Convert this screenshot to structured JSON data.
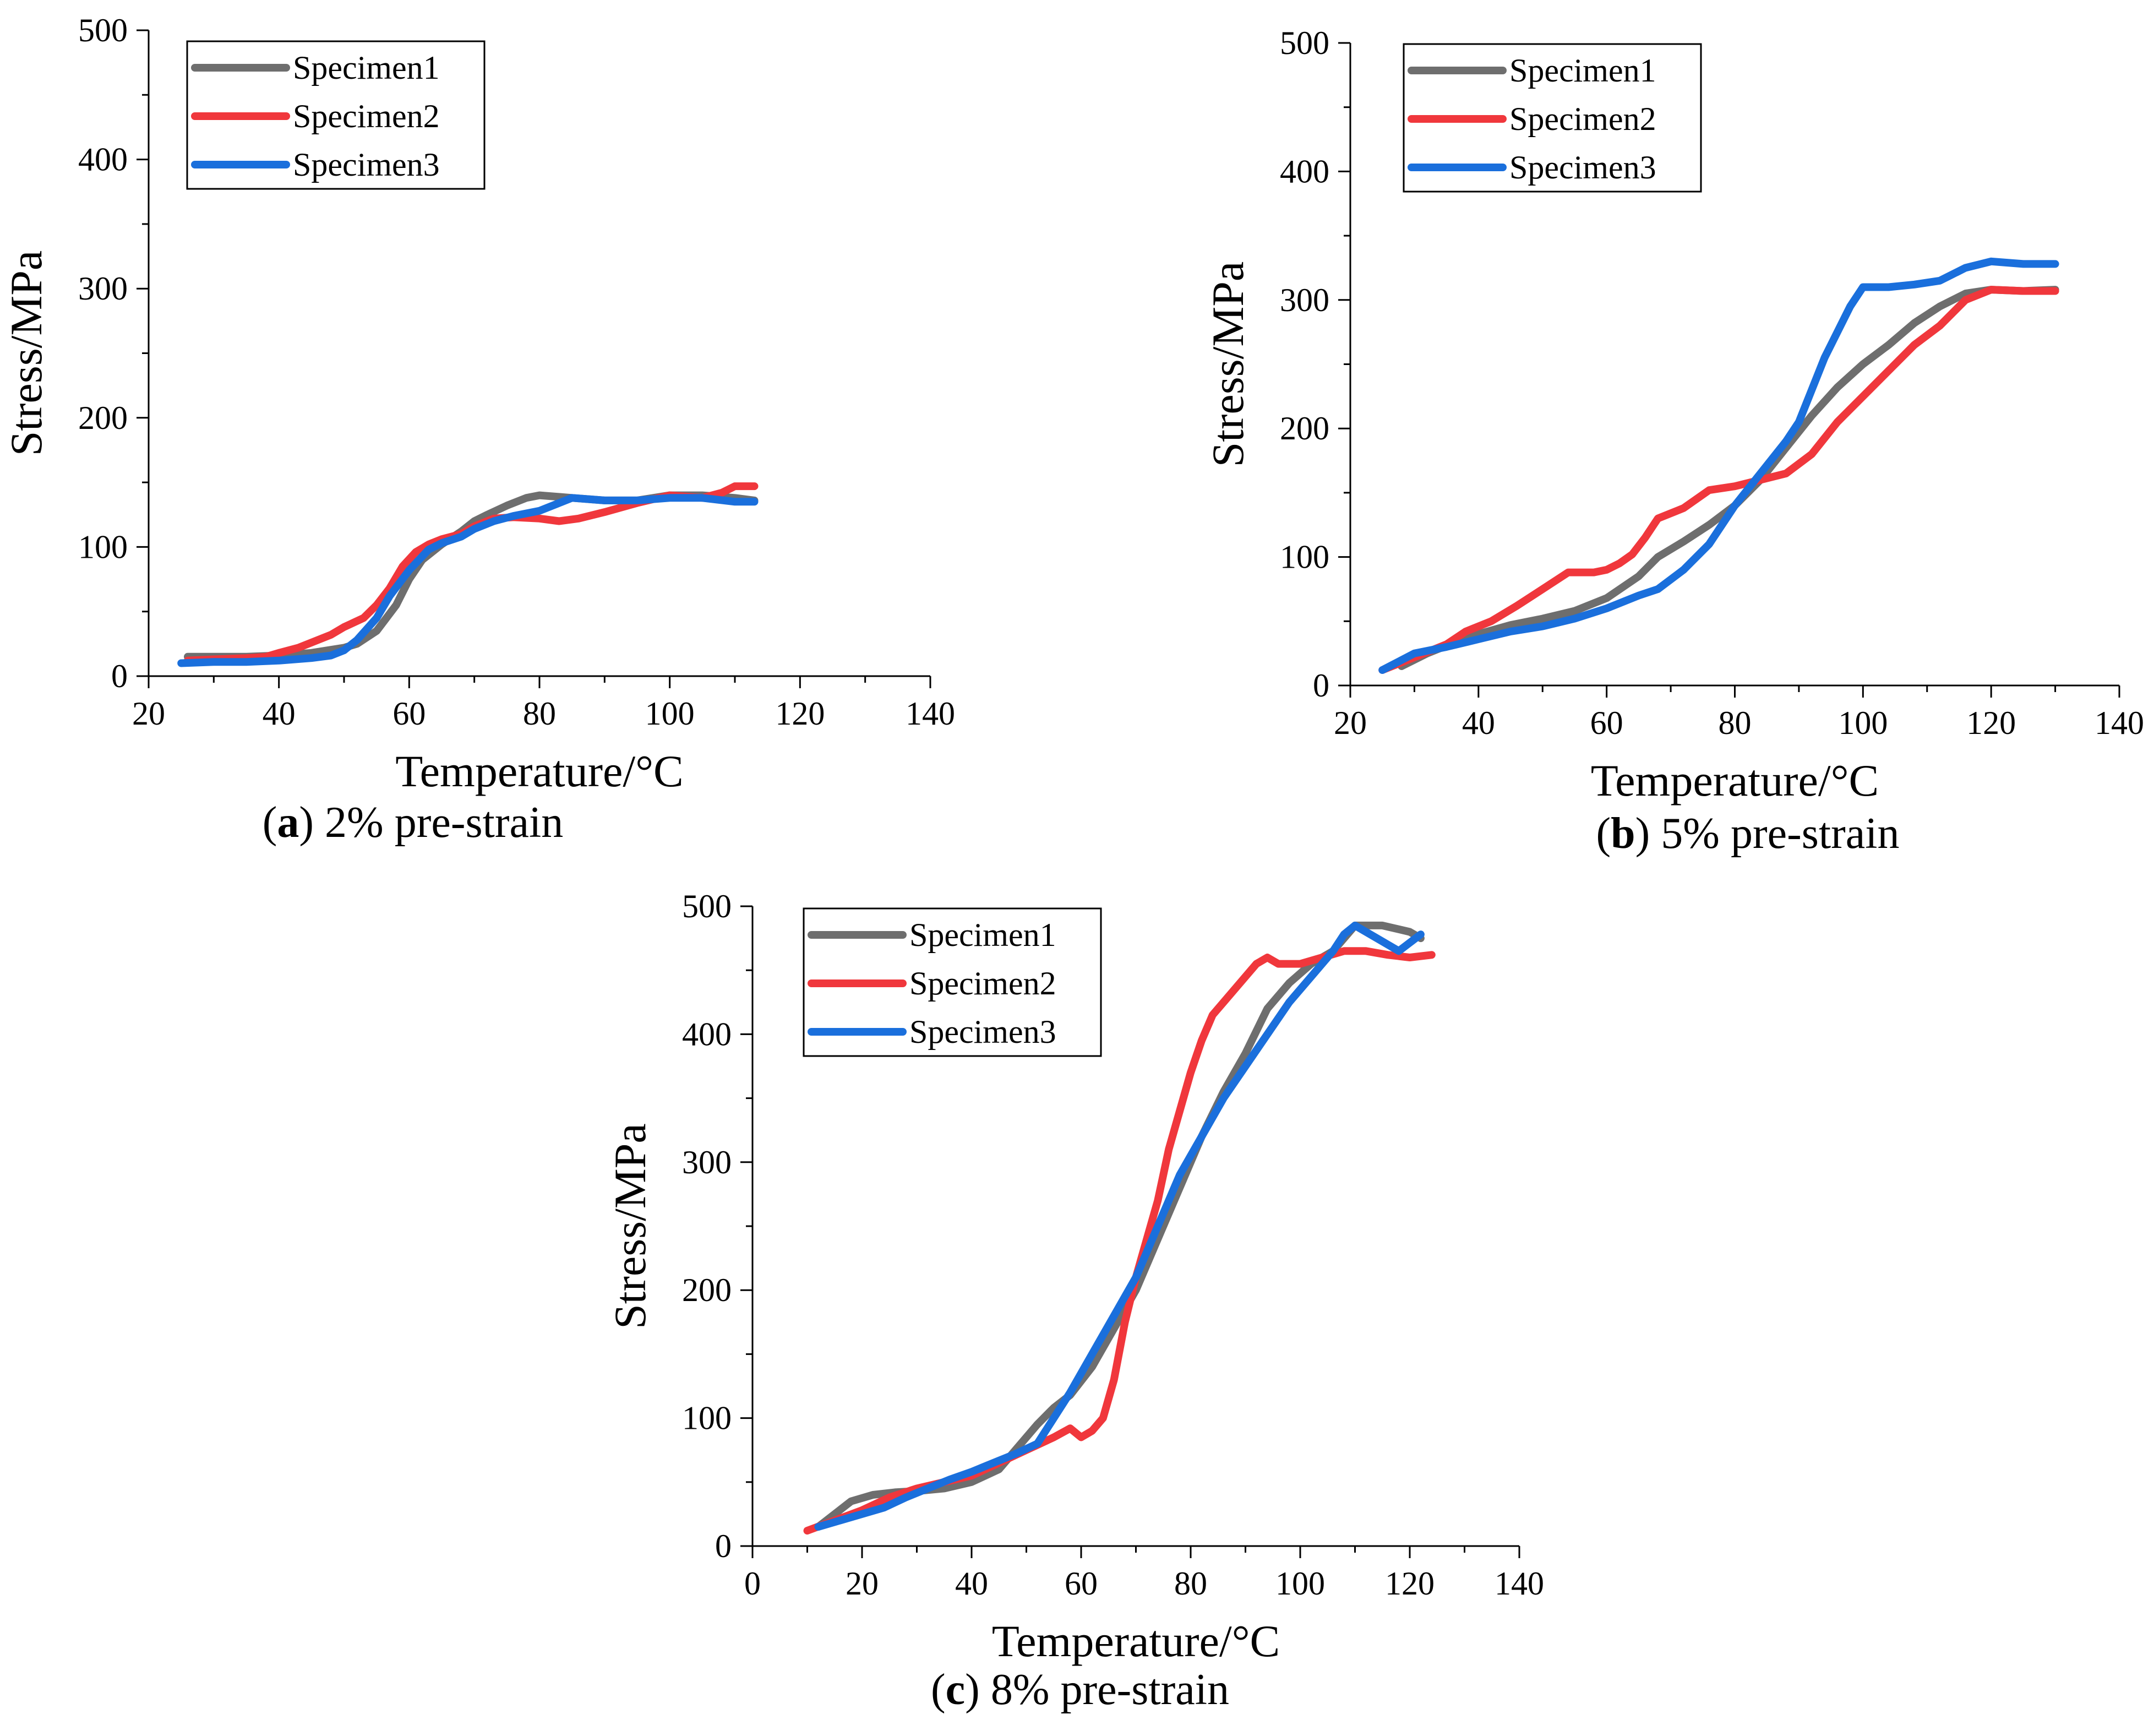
{
  "colors": {
    "Specimen1": "#6e6e6e",
    "Specimen2": "#f0373c",
    "Specimen3": "#1a6fdc"
  },
  "chart_data": [
    {
      "type": "line",
      "caption_letter": "a",
      "caption_rest": ") 2% pre-strain",
      "caption_open": "(",
      "xlabel": "Temperature/°C",
      "ylabel": "Stress/MPa",
      "xlim": [
        20,
        140
      ],
      "ylim": [
        0,
        500
      ],
      "xticks": [
        20,
        40,
        60,
        80,
        100,
        120,
        140
      ],
      "yticks": [
        0,
        100,
        200,
        300,
        400,
        500
      ],
      "legend_position": "top-left",
      "series": [
        {
          "name": "Specimen1",
          "x": [
            26,
            30,
            35,
            40,
            45,
            50,
            52,
            55,
            58,
            60,
            62,
            65,
            68,
            70,
            72,
            75,
            78,
            80,
            85,
            90,
            95,
            100,
            105,
            110,
            113
          ],
          "y": [
            15,
            15,
            15,
            16,
            18,
            22,
            25,
            35,
            55,
            75,
            90,
            102,
            112,
            120,
            125,
            132,
            138,
            140,
            138,
            136,
            136,
            140,
            140,
            138,
            136
          ]
        },
        {
          "name": "Specimen2",
          "x": [
            26,
            30,
            35,
            38,
            40,
            43,
            45,
            48,
            50,
            53,
            55,
            57,
            59,
            61,
            63,
            65,
            68,
            70,
            73,
            76,
            80,
            83,
            86,
            90,
            95,
            100,
            105,
            108,
            110,
            113
          ],
          "y": [
            12,
            13,
            14,
            15,
            18,
            22,
            26,
            32,
            38,
            45,
            55,
            68,
            85,
            96,
            102,
            106,
            110,
            116,
            122,
            123,
            122,
            120,
            122,
            127,
            134,
            140,
            138,
            142,
            147,
            147
          ]
        },
        {
          "name": "Specimen3",
          "x": [
            25,
            30,
            35,
            40,
            45,
            48,
            50,
            52,
            55,
            57,
            60,
            63,
            65,
            68,
            70,
            73,
            76,
            80,
            85,
            90,
            95,
            100,
            105,
            110,
            113
          ],
          "y": [
            10,
            11,
            11,
            12,
            14,
            16,
            20,
            28,
            45,
            62,
            82,
            98,
            103,
            108,
            114,
            120,
            124,
            128,
            138,
            136,
            136,
            138,
            138,
            135,
            135
          ]
        }
      ]
    },
    {
      "type": "line",
      "caption_letter": "b",
      "caption_rest": ") 5% pre-strain",
      "caption_open": "(",
      "xlabel": "Temperature/°C",
      "ylabel": "Stress/MPa",
      "xlim": [
        20,
        140
      ],
      "ylim": [
        0,
        500
      ],
      "xticks": [
        20,
        40,
        60,
        80,
        100,
        120,
        140
      ],
      "yticks": [
        0,
        100,
        200,
        300,
        400,
        500
      ],
      "legend_position": "top-left",
      "series": [
        {
          "name": "Specimen1",
          "x": [
            28,
            32,
            36,
            40,
            45,
            50,
            55,
            60,
            65,
            68,
            72,
            76,
            80,
            84,
            88,
            92,
            96,
            100,
            104,
            108,
            112,
            116,
            120,
            125,
            130
          ],
          "y": [
            15,
            25,
            33,
            40,
            47,
            52,
            58,
            68,
            85,
            100,
            112,
            125,
            140,
            160,
            185,
            210,
            232,
            250,
            265,
            282,
            295,
            305,
            308,
            307,
            308
          ]
        },
        {
          "name": "Specimen2",
          "x": [
            25,
            30,
            35,
            38,
            42,
            46,
            50,
            54,
            58,
            60,
            62,
            64,
            66,
            68,
            72,
            76,
            80,
            84,
            88,
            92,
            96,
            100,
            104,
            108,
            112,
            116,
            120,
            125,
            130
          ],
          "y": [
            12,
            22,
            32,
            42,
            50,
            62,
            75,
            88,
            88,
            90,
            95,
            102,
            115,
            130,
            138,
            152,
            155,
            160,
            165,
            180,
            205,
            225,
            245,
            265,
            280,
            300,
            308,
            307,
            307
          ]
        },
        {
          "name": "Specimen3",
          "x": [
            25,
            30,
            35,
            40,
            45,
            50,
            55,
            60,
            65,
            68,
            72,
            76,
            80,
            84,
            88,
            90,
            92,
            94,
            96,
            98,
            100,
            104,
            108,
            112,
            116,
            120,
            125,
            130
          ],
          "y": [
            12,
            25,
            30,
            36,
            42,
            46,
            52,
            60,
            70,
            75,
            90,
            110,
            140,
            165,
            190,
            205,
            230,
            255,
            275,
            295,
            310,
            310,
            312,
            315,
            325,
            330,
            328,
            328
          ]
        }
      ]
    },
    {
      "type": "line",
      "caption_letter": "c",
      "caption_rest": ") 8% pre-strain",
      "caption_open": "(",
      "xlabel": "Temperature/°C",
      "ylabel": "Stress/MPa",
      "xlim": [
        0,
        140
      ],
      "ylim": [
        0,
        500
      ],
      "xticks": [
        0,
        20,
        40,
        60,
        80,
        100,
        120,
        140
      ],
      "yticks": [
        0,
        100,
        200,
        300,
        400,
        500
      ],
      "legend_position": "top-left",
      "series": [
        {
          "name": "Specimen1",
          "x": [
            12,
            15,
            18,
            22,
            26,
            30,
            35,
            40,
            45,
            48,
            52,
            55,
            58,
            62,
            66,
            70,
            74,
            78,
            82,
            86,
            90,
            94,
            98,
            102,
            106,
            110,
            115,
            120,
            122
          ],
          "y": [
            15,
            25,
            35,
            40,
            42,
            43,
            45,
            50,
            60,
            75,
            95,
            108,
            118,
            140,
            170,
            200,
            240,
            280,
            320,
            355,
            385,
            420,
            440,
            455,
            465,
            485,
            485,
            480,
            475
          ]
        },
        {
          "name": "Specimen2",
          "x": [
            10,
            15,
            20,
            25,
            30,
            35,
            40,
            45,
            50,
            55,
            58,
            60,
            62,
            64,
            66,
            68,
            70,
            72,
            74,
            76,
            78,
            80,
            82,
            84,
            86,
            88,
            90,
            92,
            94,
            96,
            100,
            104,
            108,
            112,
            116,
            120,
            124
          ],
          "y": [
            12,
            20,
            28,
            38,
            45,
            50,
            55,
            65,
            75,
            85,
            92,
            85,
            90,
            100,
            130,
            175,
            210,
            240,
            270,
            310,
            340,
            370,
            395,
            415,
            425,
            435,
            445,
            455,
            460,
            455,
            455,
            460,
            465,
            465,
            462,
            460,
            462
          ]
        },
        {
          "name": "Specimen3",
          "x": [
            12,
            16,
            20,
            24,
            28,
            32,
            36,
            40,
            44,
            48,
            52,
            55,
            58,
            62,
            66,
            70,
            74,
            78,
            82,
            86,
            90,
            94,
            98,
            102,
            106,
            108,
            110,
            114,
            118,
            122
          ],
          "y": [
            15,
            20,
            25,
            30,
            38,
            45,
            52,
            58,
            65,
            72,
            80,
            100,
            120,
            150,
            180,
            210,
            250,
            290,
            320,
            350,
            375,
            400,
            425,
            445,
            465,
            478,
            485,
            475,
            465,
            478
          ]
        }
      ]
    }
  ]
}
